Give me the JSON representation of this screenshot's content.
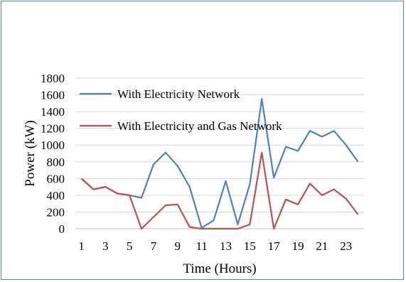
{
  "chart_data": {
    "type": "line",
    "title": "",
    "xlabel": "Time (Hours)",
    "ylabel": "Power (kW)",
    "ylim": [
      0,
      1800
    ],
    "yticks": [
      0,
      200,
      400,
      600,
      800,
      1000,
      1200,
      1400,
      1600,
      1800
    ],
    "x": [
      1,
      2,
      3,
      4,
      5,
      6,
      7,
      8,
      9,
      10,
      11,
      12,
      13,
      14,
      15,
      16,
      17,
      18,
      19,
      20,
      21,
      22,
      23,
      24
    ],
    "xtick_labels": [
      "1",
      "3",
      "5",
      "7",
      "9",
      "11",
      "13",
      "15",
      "17",
      "19",
      "21",
      "23"
    ],
    "xtick_values": [
      1,
      3,
      5,
      7,
      9,
      11,
      13,
      15,
      17,
      19,
      21,
      23
    ],
    "grid": "horizontal",
    "legend_position": "top-left",
    "series": [
      {
        "name": "With Electricity Network",
        "color": "#4f81bd",
        "values": [
          600,
          470,
          500,
          420,
          400,
          370,
          770,
          910,
          750,
          500,
          10,
          100,
          570,
          50,
          530,
          1550,
          610,
          980,
          930,
          1170,
          1100,
          1170,
          1000,
          800
        ]
      },
      {
        "name": "With Electricity and Gas Network",
        "color": "#c0504d",
        "values": [
          600,
          470,
          500,
          420,
          400,
          0,
          140,
          280,
          290,
          20,
          0,
          0,
          0,
          0,
          50,
          910,
          0,
          350,
          290,
          540,
          400,
          470,
          360,
          170
        ]
      }
    ]
  }
}
